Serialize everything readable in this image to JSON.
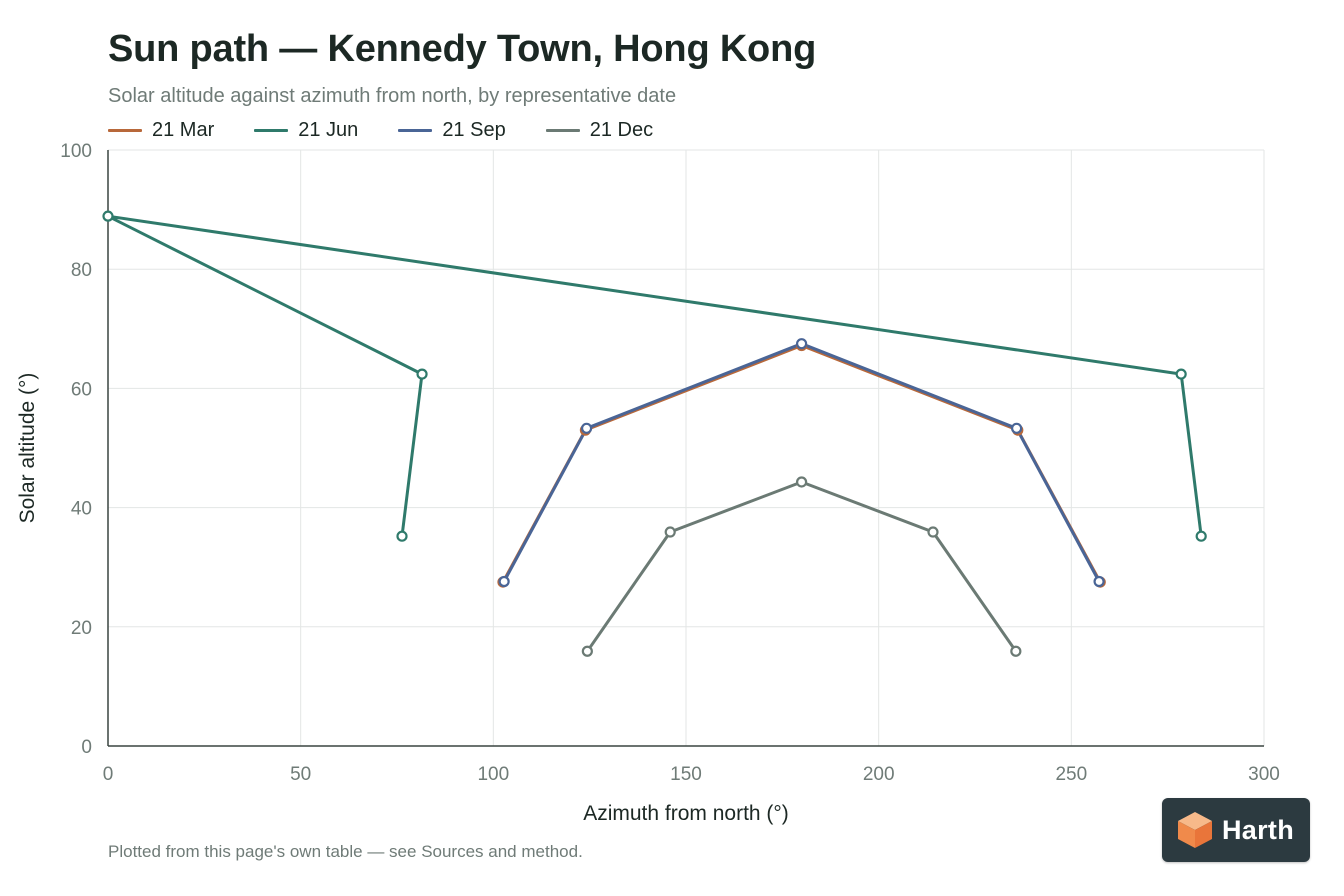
{
  "header": {
    "title": "Sun path — Kennedy Town, Hong Kong",
    "subtitle": "Solar altitude against azimuth from north, by representative date"
  },
  "footer": {
    "note": "Plotted from this page's own table — see Sources and method."
  },
  "logo": {
    "text": "Harth"
  },
  "chart_data": {
    "type": "line",
    "title": "Sun path — Kennedy Town, Hong Kong",
    "subtitle": "Solar altitude against azimuth from north, by representative date",
    "xlabel": "Azimuth from north (°)",
    "ylabel": "Solar altitude (°)",
    "xlim": [
      0,
      300
    ],
    "ylim": [
      0,
      100
    ],
    "xticks": [
      0,
      50,
      100,
      150,
      200,
      250,
      300
    ],
    "yticks": [
      0,
      20,
      40,
      60,
      80,
      100
    ],
    "grid": true,
    "legend_position": "top-left",
    "series": [
      {
        "name": "21 Mar",
        "color": "#b8683a",
        "x": [
          102.5,
          123.9,
          180,
          236.1,
          257.5
        ],
        "y": [
          27.5,
          53.0,
          67.2,
          53.0,
          27.5
        ]
      },
      {
        "name": "21 Jun",
        "color": "#2f7a6b",
        "x": [
          76.3,
          81.5,
          0,
          278.5,
          283.7
        ],
        "y": [
          35.2,
          62.4,
          88.9,
          62.4,
          35.2
        ]
      },
      {
        "name": "21 Sep",
        "color": "#4a6596",
        "x": [
          102.8,
          124.2,
          180,
          235.8,
          257.2
        ],
        "y": [
          27.6,
          53.3,
          67.5,
          53.3,
          27.6
        ]
      },
      {
        "name": "21 Dec",
        "color": "#6b7a74",
        "x": [
          124.4,
          145.9,
          180,
          214.1,
          235.6
        ],
        "y": [
          15.9,
          35.9,
          44.3,
          35.9,
          15.9
        ]
      }
    ]
  }
}
